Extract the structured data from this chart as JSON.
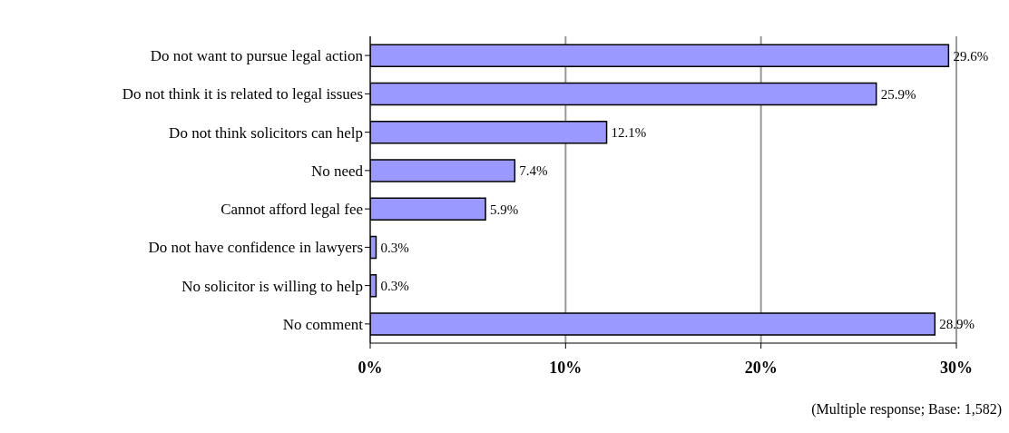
{
  "chart_data": {
    "type": "bar",
    "orientation": "horizontal",
    "categories": [
      "Do not want to pursue legal action",
      "Do not think it is related to legal issues",
      "Do not think solicitors can help",
      "No need",
      "Cannot afford legal fee",
      "Do not have confidence in lawyers",
      "No solicitor is willing to help",
      "No comment"
    ],
    "values": [
      29.6,
      25.9,
      12.1,
      7.4,
      5.9,
      0.3,
      0.3,
      28.9
    ],
    "color": "#9999ff",
    "xlim": [
      0,
      30
    ],
    "xticks": [
      {
        "value": 0,
        "label": "0%"
      },
      {
        "value": 10,
        "label": "10%"
      },
      {
        "value": 20,
        "label": "20%"
      },
      {
        "value": 30,
        "label": "30%"
      }
    ],
    "value_labels": [
      "29.6%",
      "25.9%",
      "12.1%",
      "7.4%",
      "5.9%",
      "0.3%",
      "0.3%",
      "28.9%"
    ],
    "grid": "x",
    "annotations": [
      "(Multiple response; Base: 1,582)"
    ]
  }
}
